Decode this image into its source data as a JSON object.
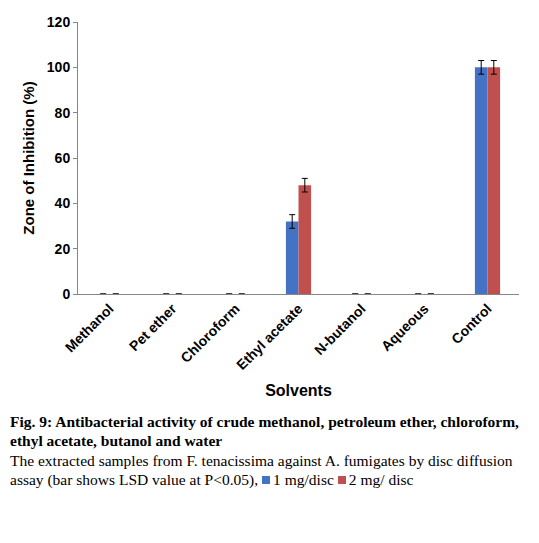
{
  "chart_data": {
    "type": "bar",
    "title": "Fig. 9: Antibacterial activity of crude methanol, petroleum ether, chloroform, ethyl acetate, butanol and water",
    "note": "The extracted samples from F. tenacissima against A. fumigates by disc diffusion assay (bar shows LSD value at P<0.05),",
    "x_label": "Solvents",
    "y_label": "Zone of Inhibition (%)",
    "categories": [
      "Methanol",
      "Pet ether",
      "Chloroform",
      "Ethyl acetate",
      "N-butanol",
      "Aqueous",
      "Control"
    ],
    "series": [
      {
        "name": "1 mg/disc",
        "color": "#4472c4",
        "values": [
          0,
          0,
          0,
          32,
          0,
          0,
          100
        ],
        "errors": [
          null,
          null,
          null,
          3,
          null,
          null,
          3
        ]
      },
      {
        "name": "2 mg/ disc",
        "color": "#c0504d",
        "values": [
          0,
          0,
          0,
          48,
          0,
          0,
          100
        ],
        "errors": [
          null,
          null,
          null,
          3,
          null,
          null,
          3
        ]
      }
    ],
    "ylim": [
      0,
      120
    ],
    "yticks": [
      0,
      20,
      40,
      60,
      80,
      100,
      120
    ],
    "grid": false
  }
}
